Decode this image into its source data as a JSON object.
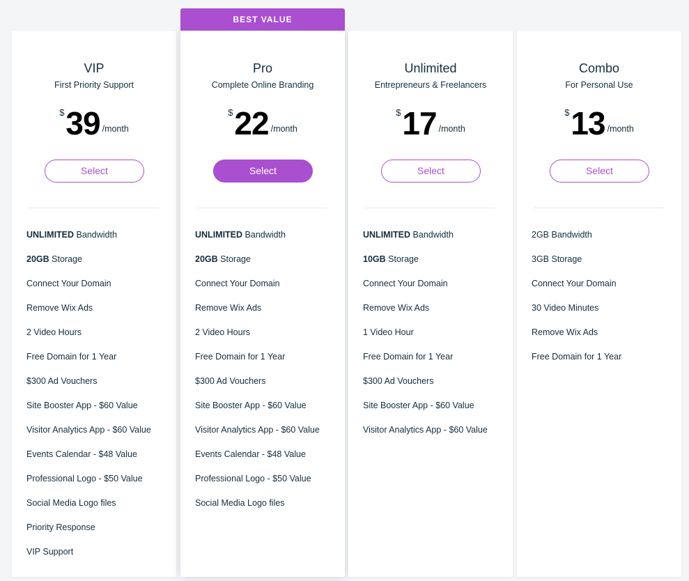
{
  "accent_color": "#a94fcf",
  "plans": [
    {
      "name": "VIP",
      "tagline": "First Priority Support",
      "currency": "$",
      "amount": "39",
      "period": "/month",
      "select_label": "Select",
      "highlighted": false,
      "features": [
        {
          "bold": "UNLIMITED",
          "text": "Bandwidth"
        },
        {
          "bold": "20GB",
          "text": "Storage"
        },
        {
          "text": "Connect Your Domain"
        },
        {
          "text": "Remove Wix Ads"
        },
        {
          "text": "2 Video Hours"
        },
        {
          "text": "Free Domain for 1 Year"
        },
        {
          "text": "$300 Ad Vouchers"
        },
        {
          "text": "Site Booster App - $60 Value"
        },
        {
          "text": "Visitor Analytics App - $60 Value"
        },
        {
          "text": "Events Calendar - $48 Value"
        },
        {
          "text": "Professional Logo - $50 Value"
        },
        {
          "text": "Social Media Logo files"
        },
        {
          "text": "Priority Response"
        },
        {
          "text": "VIP Support"
        }
      ]
    },
    {
      "name": "Pro",
      "tagline": "Complete Online Branding",
      "ribbon": "BEST VALUE",
      "currency": "$",
      "amount": "22",
      "period": "/month",
      "select_label": "Select",
      "highlighted": true,
      "features": [
        {
          "bold": "UNLIMITED",
          "text": "Bandwidth"
        },
        {
          "bold": "20GB",
          "text": "Storage"
        },
        {
          "text": "Connect Your Domain"
        },
        {
          "text": "Remove Wix Ads"
        },
        {
          "text": "2 Video Hours"
        },
        {
          "text": "Free Domain for 1 Year"
        },
        {
          "text": "$300 Ad Vouchers"
        },
        {
          "text": "Site Booster App - $60 Value"
        },
        {
          "text": "Visitor Analytics App - $60 Value"
        },
        {
          "text": "Events Calendar - $48 Value"
        },
        {
          "text": "Professional Logo - $50 Value"
        },
        {
          "text": "Social Media Logo files"
        }
      ]
    },
    {
      "name": "Unlimited",
      "tagline": "Entrepreneurs & Freelancers",
      "currency": "$",
      "amount": "17",
      "period": "/month",
      "select_label": "Select",
      "highlighted": false,
      "features": [
        {
          "bold": "UNLIMITED",
          "text": "Bandwidth"
        },
        {
          "bold": "10GB",
          "text": "Storage"
        },
        {
          "text": "Connect Your Domain"
        },
        {
          "text": "Remove Wix Ads"
        },
        {
          "text": "1 Video Hour"
        },
        {
          "text": "Free Domain for 1 Year"
        },
        {
          "text": "$300 Ad Vouchers"
        },
        {
          "text": "Site Booster App - $60 Value"
        },
        {
          "text": "Visitor Analytics App - $60 Value"
        }
      ]
    },
    {
      "name": "Combo",
      "tagline": "For Personal Use",
      "currency": "$",
      "amount": "13",
      "period": "/month",
      "select_label": "Select",
      "highlighted": false,
      "features": [
        {
          "text": "2GB Bandwidth"
        },
        {
          "text": "3GB Storage"
        },
        {
          "text": "Connect Your Domain"
        },
        {
          "text": "30 Video Minutes"
        },
        {
          "text": "Remove Wix Ads"
        },
        {
          "text": "Free Domain for 1 Year"
        }
      ]
    }
  ]
}
